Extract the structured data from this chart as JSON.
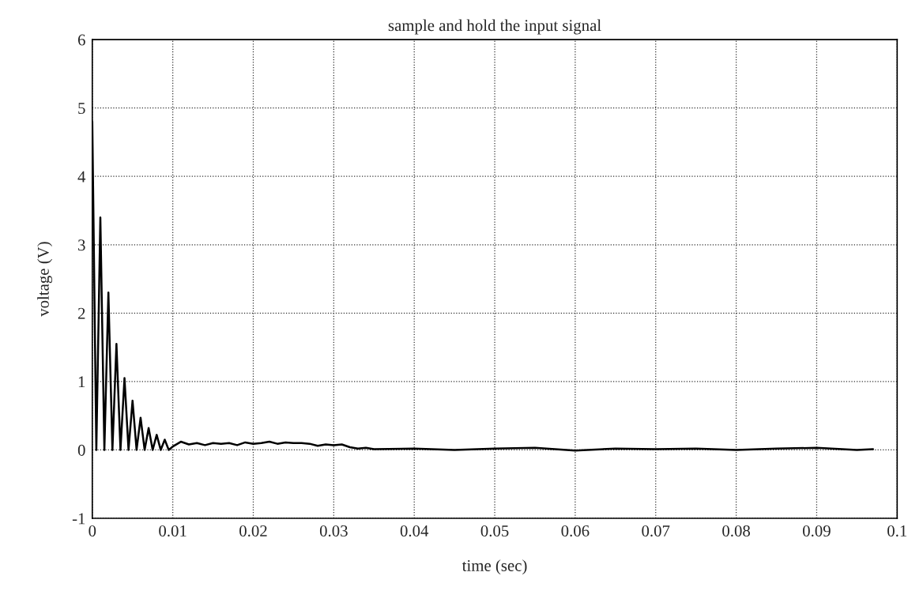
{
  "chart_data": {
    "type": "line",
    "title": "sample and hold the input signal",
    "xlabel": "time (sec)",
    "ylabel": "voltage (V)",
    "x": [
      0,
      0.0005,
      0.001,
      0.0015,
      0.002,
      0.0025,
      0.003,
      0.0035,
      0.004,
      0.0045,
      0.005,
      0.0055,
      0.006,
      0.0065,
      0.007,
      0.0075,
      0.008,
      0.0085,
      0.009,
      0.0095,
      0.01,
      0.011,
      0.012,
      0.013,
      0.014,
      0.015,
      0.016,
      0.017,
      0.018,
      0.019,
      0.02,
      0.021,
      0.022,
      0.023,
      0.024,
      0.025,
      0.026,
      0.027,
      0.028,
      0.029,
      0.03,
      0.031,
      0.032,
      0.033,
      0.034,
      0.035,
      0.04,
      0.045,
      0.05,
      0.055,
      0.06,
      0.065,
      0.07,
      0.075,
      0.08,
      0.085,
      0.09,
      0.095,
      0.097
    ],
    "series": [
      {
        "color": "#000000",
        "values": [
          4.8,
          0,
          3.4,
          0,
          2.3,
          0,
          1.55,
          0,
          1.05,
          0,
          0.72,
          0,
          0.47,
          0,
          0.32,
          0,
          0.22,
          0,
          0.15,
          0,
          0.05,
          0.12,
          0.08,
          0.1,
          0.07,
          0.1,
          0.09,
          0.1,
          0.07,
          0.11,
          0.09,
          0.1,
          0.12,
          0.09,
          0.11,
          0.1,
          0.1,
          0.09,
          0.06,
          0.08,
          0.07,
          0.08,
          0.04,
          0.02,
          0.03,
          0.01,
          0.02,
          0.0,
          0.02,
          0.03,
          -0.01,
          0.02,
          0.01,
          0.02,
          0.0,
          0.02,
          0.03,
          0.0,
          0.01
        ]
      }
    ],
    "xlim": [
      0,
      0.1
    ],
    "ylim": [
      -1,
      6
    ],
    "xticks": [
      0,
      0.01,
      0.02,
      0.03,
      0.04,
      0.05,
      0.06,
      0.07,
      0.08,
      0.09,
      0.1
    ],
    "yticks": [
      -1,
      0,
      1,
      2,
      3,
      4,
      5,
      6
    ],
    "grid": true,
    "line_style": "solid"
  }
}
